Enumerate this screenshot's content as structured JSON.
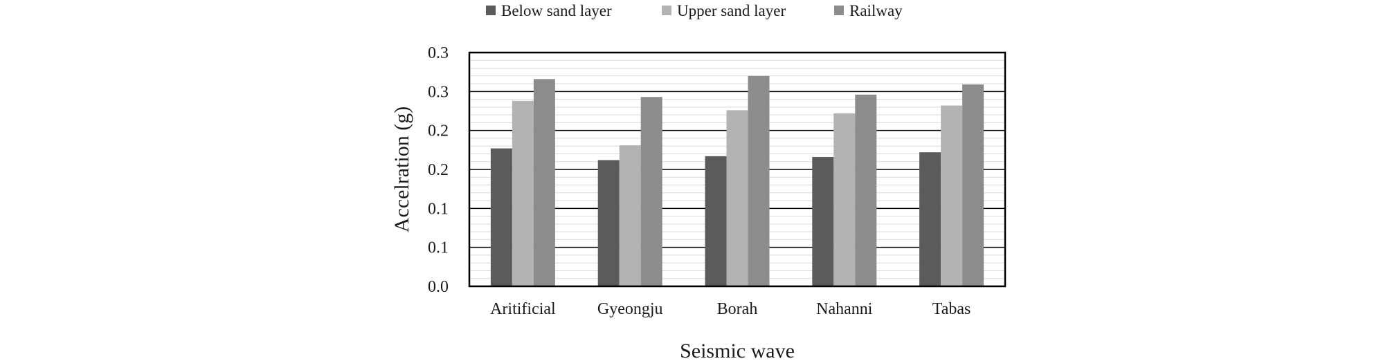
{
  "chart_data": {
    "type": "bar",
    "title": "",
    "xlabel": "Seismic wave",
    "ylabel": "Accelration (g)",
    "categories": [
      "Aritificial",
      "Gyeongju",
      "Borah",
      "Nahanni",
      "Tabas"
    ],
    "series": [
      {
        "name": "Below sand layer",
        "color": "#5b5b5b",
        "values": [
          0.177,
          0.162,
          0.167,
          0.166,
          0.172
        ]
      },
      {
        "name": "Upper sand layer",
        "color": "#b3b3b3",
        "values": [
          0.238,
          0.181,
          0.226,
          0.222,
          0.232
        ]
      },
      {
        "name": "Railway",
        "color": "#8c8c8c",
        "values": [
          0.266,
          0.243,
          0.27,
          0.246,
          0.259
        ]
      }
    ],
    "ylim": [
      0,
      0.3
    ],
    "yticks": [
      0,
      0.05,
      0.1,
      0.15,
      0.2,
      0.25,
      0.3
    ],
    "ytick_labels": [
      "0.0",
      "0.1",
      "0.1",
      "0.2",
      "0.2",
      "0.3",
      "0.3"
    ],
    "minor_step": 0.01,
    "grid": true,
    "legend_position": "top"
  }
}
